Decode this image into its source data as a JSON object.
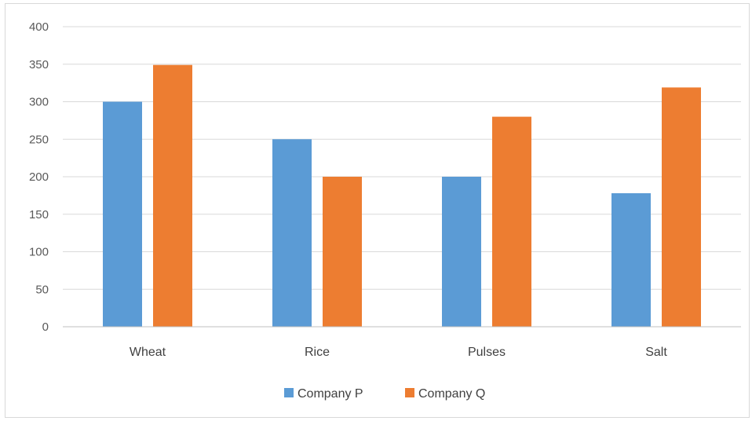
{
  "chart_data": {
    "type": "bar",
    "categories": [
      "Wheat",
      "Rice",
      "Pulses",
      "Salt"
    ],
    "series": [
      {
        "name": "Company P",
        "color": "#5b9bd5",
        "values": [
          300,
          250,
          200,
          178
        ]
      },
      {
        "name": "Company Q",
        "color": "#ed7d31",
        "values": [
          349,
          200,
          280,
          319
        ]
      }
    ],
    "title": "",
    "xlabel": "",
    "ylabel": "",
    "ylim": [
      0,
      400
    ],
    "yticks": [
      "0",
      "50",
      "100",
      "150",
      "200",
      "250",
      "300",
      "350",
      "400"
    ],
    "grid": true,
    "legend_position": "bottom"
  }
}
